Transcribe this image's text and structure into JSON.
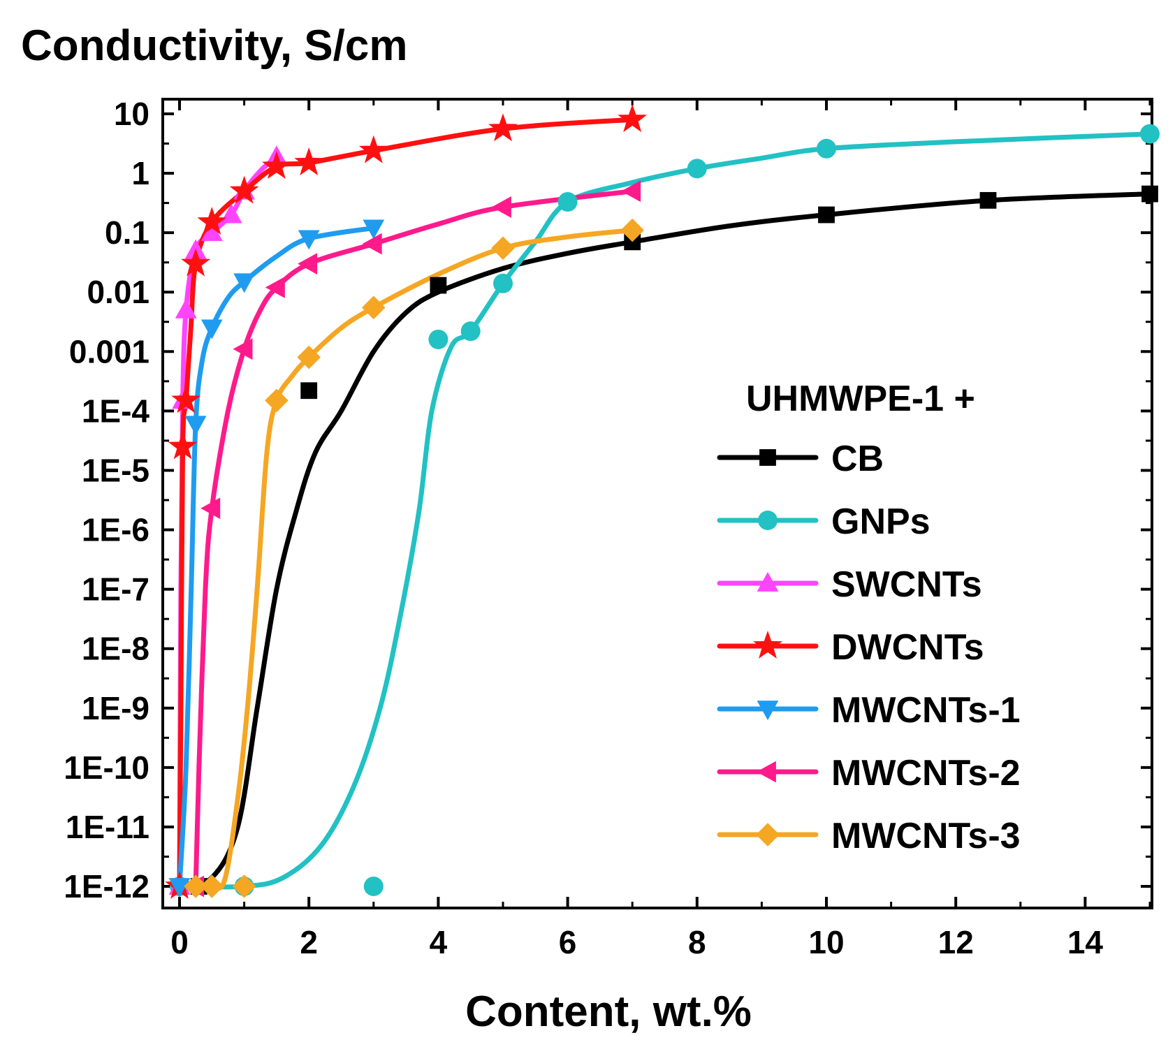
{
  "chart_data": {
    "type": "line",
    "title": "",
    "ylabel": "Conductivity, S/cm",
    "xlabel": "Content, wt.%",
    "yscale": "log",
    "xlim": [
      -0.3,
      15.2
    ],
    "ylim": [
      3e-13,
      20
    ],
    "x_ticks": [
      0,
      2,
      4,
      6,
      8,
      10,
      12,
      14
    ],
    "y_ticks": [
      1e-12,
      1e-11,
      1e-10,
      1e-09,
      1e-08,
      1e-07,
      1e-06,
      1e-05,
      0.0001,
      0.001,
      0.01,
      0.1,
      1,
      10
    ],
    "y_tick_labels": [
      "1E-12",
      "1E-11",
      "1E-10",
      "1E-9",
      "1E-8",
      "1E-7",
      "1E-6",
      "1E-5",
      "1E-4",
      "0.001",
      "0.01",
      "0.1",
      "1",
      "10"
    ],
    "grid": false,
    "legend_title": "UHMWPE-1 +",
    "legend_position": "right",
    "series": [
      {
        "name": "CB",
        "color": "#000000",
        "marker": "square",
        "points": [
          [
            0.3,
            1e-12
          ],
          [
            2,
            0.00022
          ],
          [
            4,
            0.013
          ],
          [
            7,
            0.07
          ],
          [
            10,
            0.2
          ],
          [
            12.5,
            0.35
          ],
          [
            15,
            0.45
          ]
        ],
        "curve": [
          [
            0,
            1e-12
          ],
          [
            0.5,
            1.4e-12
          ],
          [
            0.9,
            1e-11
          ],
          [
            1.2,
            1e-09
          ],
          [
            1.5,
            1e-07
          ],
          [
            1.8,
            2e-06
          ],
          [
            2.1,
            2e-05
          ],
          [
            2.5,
            0.0001
          ],
          [
            3,
            0.001
          ],
          [
            3.5,
            0.0045
          ],
          [
            4,
            0.01
          ],
          [
            5,
            0.025
          ],
          [
            6,
            0.045
          ],
          [
            7,
            0.07
          ],
          [
            8.5,
            0.13
          ],
          [
            10,
            0.2
          ],
          [
            12.5,
            0.35
          ],
          [
            15,
            0.45
          ]
        ]
      },
      {
        "name": "GNPs",
        "color": "#22c1c3",
        "marker": "circle",
        "points": [
          [
            0,
            1e-12
          ],
          [
            1,
            1e-12
          ],
          [
            3,
            1e-12
          ],
          [
            4,
            0.0016
          ],
          [
            4.5,
            0.0022
          ],
          [
            5,
            0.014
          ],
          [
            6,
            0.33
          ],
          [
            8,
            1.2
          ],
          [
            10,
            2.6
          ],
          [
            15,
            4.6
          ]
        ],
        "curve": [
          [
            0,
            1e-12
          ],
          [
            1,
            1e-12
          ],
          [
            1.6,
            1.4e-12
          ],
          [
            2.2,
            5e-12
          ],
          [
            2.7,
            5e-11
          ],
          [
            3.1,
            1e-09
          ],
          [
            3.4,
            3e-08
          ],
          [
            3.7,
            2e-06
          ],
          [
            3.9,
            0.0001
          ],
          [
            4.2,
            0.0012
          ],
          [
            4.5,
            0.0022
          ],
          [
            5,
            0.014
          ],
          [
            5.5,
            0.07
          ],
          [
            6,
            0.33
          ],
          [
            7,
            0.7
          ],
          [
            8,
            1.2
          ],
          [
            9,
            1.8
          ],
          [
            10,
            2.6
          ],
          [
            12,
            3.4
          ],
          [
            15,
            4.6
          ]
        ]
      },
      {
        "name": "SWCNTs",
        "color": "#ff44ff",
        "marker": "triangle-up",
        "points": [
          [
            0,
            1e-12
          ],
          [
            0.05,
            0.00015
          ],
          [
            0.1,
            0.005
          ],
          [
            0.25,
            0.05
          ],
          [
            0.5,
            0.1
          ],
          [
            0.8,
            0.2
          ],
          [
            1,
            0.5
          ],
          [
            1.5,
            1.9
          ]
        ],
        "curve": [
          [
            0,
            1e-12
          ],
          [
            0.02,
            1e-07
          ],
          [
            0.05,
            0.00015
          ],
          [
            0.1,
            0.005
          ],
          [
            0.25,
            0.05
          ],
          [
            0.5,
            0.1
          ],
          [
            0.8,
            0.2
          ],
          [
            1,
            0.5
          ],
          [
            1.25,
            1.1
          ],
          [
            1.5,
            1.9
          ]
        ]
      },
      {
        "name": "DWCNTs",
        "color": "#ff1010",
        "marker": "star",
        "points": [
          [
            0,
            1e-12
          ],
          [
            0.05,
            2.5e-05
          ],
          [
            0.1,
            0.00015
          ],
          [
            0.25,
            0.03
          ],
          [
            0.5,
            0.15
          ],
          [
            1,
            0.5
          ],
          [
            1.5,
            1.3
          ],
          [
            2,
            1.5
          ],
          [
            3,
            2.4
          ],
          [
            5,
            5.6
          ],
          [
            7,
            8
          ]
        ],
        "curve": [
          [
            0,
            1e-12
          ],
          [
            0.02,
            1e-09
          ],
          [
            0.05,
            2.5e-05
          ],
          [
            0.1,
            0.00015
          ],
          [
            0.17,
            0.002
          ],
          [
            0.25,
            0.03
          ],
          [
            0.5,
            0.15
          ],
          [
            1,
            0.5
          ],
          [
            1.5,
            1.3
          ],
          [
            2,
            1.5
          ],
          [
            3,
            2.4
          ],
          [
            5,
            5.6
          ],
          [
            7,
            8
          ]
        ]
      },
      {
        "name": "MWCNTs-1",
        "color": "#1f9cf0",
        "marker": "triangle-down",
        "points": [
          [
            0,
            1e-12
          ],
          [
            0.25,
            6e-05
          ],
          [
            0.5,
            0.0025
          ],
          [
            1,
            0.015
          ],
          [
            2,
            0.08
          ],
          [
            3,
            0.12
          ]
        ],
        "curve": [
          [
            0,
            1e-12
          ],
          [
            0.1,
            1e-10
          ],
          [
            0.18,
            1e-07
          ],
          [
            0.25,
            6e-05
          ],
          [
            0.35,
            0.0007
          ],
          [
            0.5,
            0.0025
          ],
          [
            0.75,
            0.008
          ],
          [
            1,
            0.015
          ],
          [
            1.5,
            0.04
          ],
          [
            2,
            0.08
          ],
          [
            3,
            0.12
          ]
        ]
      },
      {
        "name": "MWCNTs-2",
        "color": "#ff1a8c",
        "marker": "triangle-left",
        "points": [
          [
            0.25,
            1e-12
          ],
          [
            0.5,
            2.3e-06
          ],
          [
            1,
            0.0011
          ],
          [
            1.5,
            0.012
          ],
          [
            2,
            0.03
          ],
          [
            3,
            0.065
          ],
          [
            5,
            0.27
          ],
          [
            7,
            0.5
          ]
        ],
        "curve": [
          [
            0.25,
            1e-12
          ],
          [
            0.3,
            1e-10
          ],
          [
            0.4,
            1e-07
          ],
          [
            0.5,
            2.3e-06
          ],
          [
            0.75,
            0.0001
          ],
          [
            1,
            0.0011
          ],
          [
            1.25,
            0.005
          ],
          [
            1.5,
            0.012
          ],
          [
            2,
            0.03
          ],
          [
            3,
            0.065
          ],
          [
            4,
            0.14
          ],
          [
            5,
            0.27
          ],
          [
            7,
            0.5
          ]
        ]
      },
      {
        "name": "MWCNTs-3",
        "color": "#f5a623",
        "marker": "diamond",
        "points": [
          [
            0.25,
            1e-12
          ],
          [
            0.5,
            1e-12
          ],
          [
            1,
            1e-12
          ],
          [
            1.5,
            0.00015
          ],
          [
            2,
            0.0008
          ],
          [
            3,
            0.0055
          ],
          [
            5,
            0.055
          ],
          [
            7,
            0.11
          ]
        ],
        "curve": [
          [
            0.25,
            1e-12
          ],
          [
            0.5,
            1e-12
          ],
          [
            0.7,
            1.3e-12
          ],
          [
            0.9,
            3e-11
          ],
          [
            1.05,
            1e-09
          ],
          [
            1.2,
            1e-07
          ],
          [
            1.35,
            2e-05
          ],
          [
            1.5,
            0.00015
          ],
          [
            1.75,
            0.0004
          ],
          [
            2,
            0.0008
          ],
          [
            2.5,
            0.0025
          ],
          [
            3,
            0.0055
          ],
          [
            4,
            0.02
          ],
          [
            5,
            0.055
          ],
          [
            6,
            0.085
          ],
          [
            7,
            0.11
          ]
        ]
      }
    ]
  }
}
